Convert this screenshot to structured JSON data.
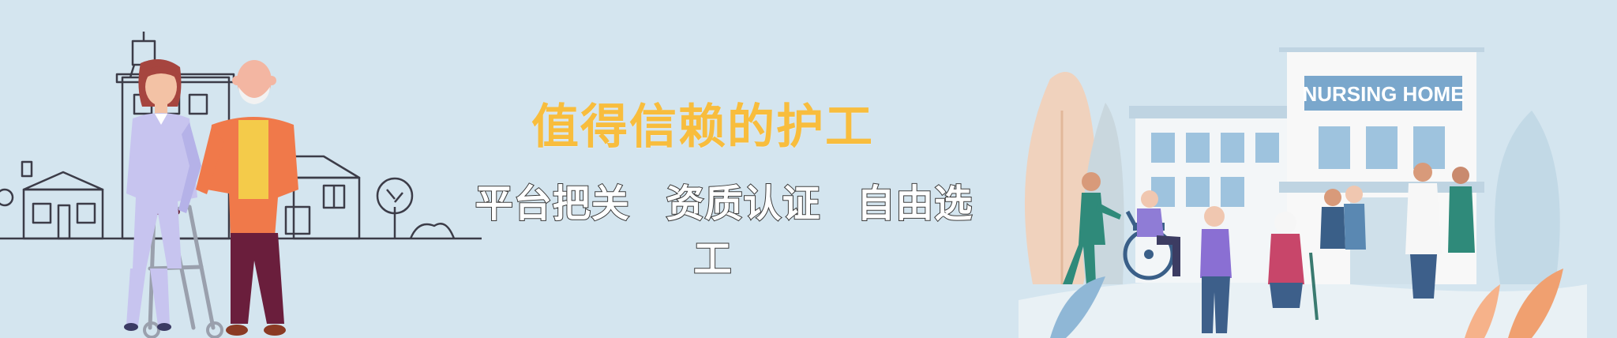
{
  "banner": {
    "title": "值得信赖的护工",
    "slogan": [
      "平台把关",
      "资质认证",
      "自由选工"
    ]
  },
  "illustration": {
    "sign": "NURSING HOME",
    "left_scene_icon": "caregiver-and-elderly-with-walker-illustration",
    "right_scene_icon": "nursing-home-scene-illustration"
  },
  "colors": {
    "background": "#d4e5ef",
    "title": "#f8bd3d",
    "slogan": "#ffffff"
  }
}
